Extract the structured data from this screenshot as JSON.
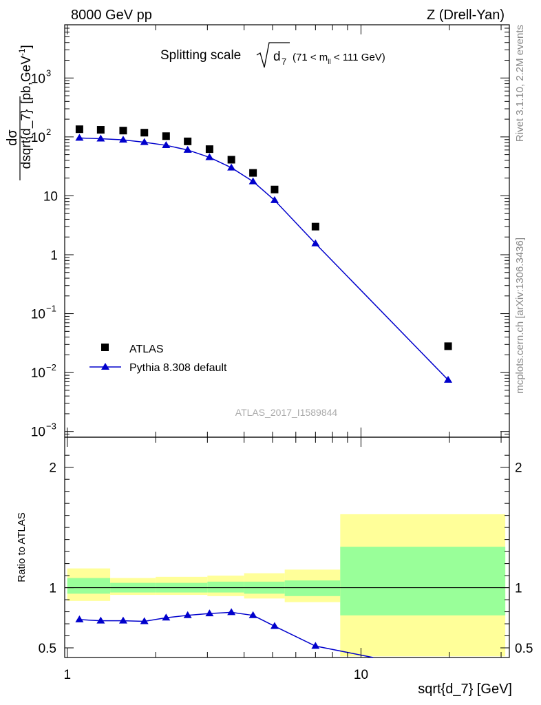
{
  "header": {
    "left": "8000 GeV pp",
    "right": "Z (Drell-Yan)"
  },
  "plot_title": {
    "main": "Splitting scale",
    "range": "(71 < m",
    "range_sub": "ll",
    "range_end": " < 111 GeV)"
  },
  "ylabel_top": {
    "numerator": "dσ",
    "denominator": "dsqrt{d_7}",
    "units": "[pb,GeV",
    "units_sup": "-1",
    "units_end": "]"
  },
  "ylabel_ratio": "Ratio to ATLAS",
  "xlabel": "sqrt{d_7} [GeV]",
  "side_text_top": "Rivet 3.1.10,  2.2M events",
  "side_text_bottom": "mcplots.cern.ch [arXiv:1306.3436]",
  "watermark": "ATLAS_2017_I1589844",
  "legend": {
    "atlas": "ATLAS",
    "pythia": "Pythia 8.308 default"
  },
  "colors": {
    "data": "#000000",
    "mc": "#0000cc",
    "band_stat": "#99ff99",
    "band_total": "#ffff99"
  },
  "chart_data": [
    {
      "type": "scatter",
      "panel": "main",
      "x_scale": "log",
      "y_scale": "log",
      "xlim": [
        0.98,
        32
      ],
      "ylim": [
        0.0008,
        8000
      ],
      "y_ticks": [
        {
          "v": 0.001,
          "label": "10",
          "sup": "−3"
        },
        {
          "v": 0.01,
          "label": "10",
          "sup": "−2"
        },
        {
          "v": 0.1,
          "label": "10",
          "sup": "−1"
        },
        {
          "v": 1,
          "label": "1",
          "sup": ""
        },
        {
          "v": 10,
          "label": "10",
          "sup": ""
        },
        {
          "v": 100,
          "label": "10",
          "sup": "2"
        },
        {
          "v": 1000,
          "label": "10",
          "sup": "3"
        }
      ],
      "series": [
        {
          "name": "ATLAS",
          "marker": "square",
          "x": [
            1.1,
            1.3,
            1.55,
            1.83,
            2.17,
            2.57,
            3.05,
            3.62,
            4.29,
            5.08,
            7.0,
            19.8
          ],
          "y": [
            135,
            132,
            128,
            118,
            103,
            84,
            62,
            41,
            24.5,
            12.8,
            3.0,
            0.028
          ]
        },
        {
          "name": "Pythia 8.308 default",
          "marker": "triangle",
          "x": [
            1.1,
            1.3,
            1.55,
            1.83,
            2.17,
            2.57,
            3.05,
            3.62,
            4.29,
            5.08,
            7.0,
            19.8
          ],
          "y": [
            96,
            93,
            89,
            81,
            72,
            60,
            45,
            30,
            17.5,
            8.4,
            1.55,
            0.0075
          ]
        }
      ]
    },
    {
      "type": "line",
      "panel": "ratio",
      "x_scale": "log",
      "xlim": [
        0.98,
        32
      ],
      "ylim": [
        0.42,
        2.25
      ],
      "y_ticks": [
        0.5,
        1,
        2
      ],
      "x_ticks": [
        {
          "v": 1,
          "label": "1"
        },
        {
          "v": 10,
          "label": "10"
        }
      ],
      "bands": [
        {
          "x0": 1.0,
          "x1": 1.4,
          "stat": [
            0.95,
            1.08
          ],
          "total": [
            0.89,
            1.16
          ]
        },
        {
          "x0": 1.4,
          "x1": 2.0,
          "stat": [
            0.96,
            1.04
          ],
          "total": [
            0.94,
            1.08
          ]
        },
        {
          "x0": 2.0,
          "x1": 3.0,
          "stat": [
            0.96,
            1.04
          ],
          "total": [
            0.94,
            1.09
          ]
        },
        {
          "x0": 3.0,
          "x1": 4.0,
          "stat": [
            0.96,
            1.05
          ],
          "total": [
            0.93,
            1.1
          ]
        },
        {
          "x0": 4.0,
          "x1": 5.5,
          "stat": [
            0.95,
            1.05
          ],
          "total": [
            0.91,
            1.12
          ]
        },
        {
          "x0": 5.5,
          "x1": 8.5,
          "stat": [
            0.93,
            1.06
          ],
          "total": [
            0.88,
            1.15
          ]
        },
        {
          "x0": 8.5,
          "x1": 31.0,
          "stat": [
            0.77,
            1.34
          ],
          "total": [
            0.43,
            1.61
          ]
        }
      ],
      "series": [
        {
          "name": "Pythia 8.308 default",
          "x": [
            1.1,
            1.3,
            1.55,
            1.83,
            2.17,
            2.57,
            3.05,
            3.62,
            4.29,
            5.08,
            7.0
          ],
          "y": [
            0.735,
            0.725,
            0.725,
            0.72,
            0.75,
            0.77,
            0.785,
            0.795,
            0.77,
            0.68,
            0.515
          ],
          "line_extends_to": {
            "x": 11.0,
            "y": 0.42
          }
        }
      ]
    }
  ]
}
